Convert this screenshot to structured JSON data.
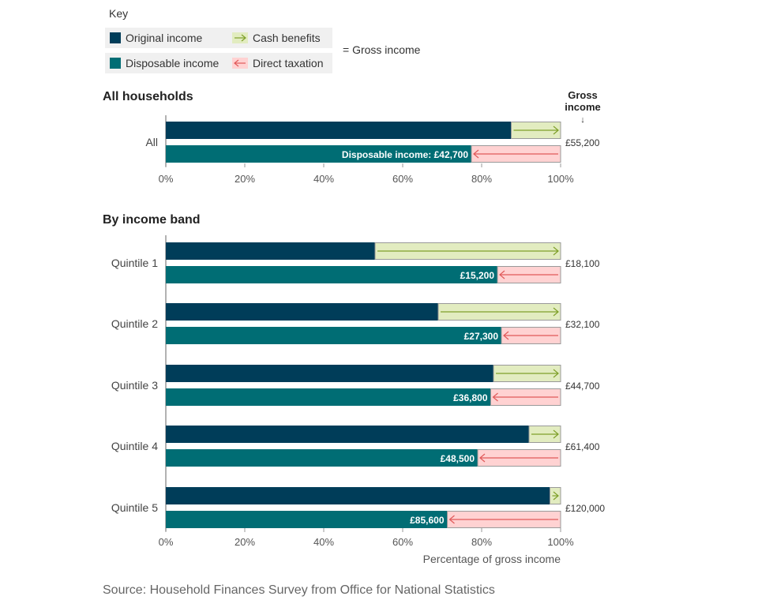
{
  "key": {
    "title": "Key",
    "items": [
      {
        "label": "Original income",
        "color": "#003d59",
        "kind": "swatch"
      },
      {
        "label": "Cash benefits",
        "color": "#e2ecc0",
        "arrow": "#7fa02a",
        "kind": "arrow-right"
      },
      {
        "label": "Disposable income",
        "color": "#006d74",
        "kind": "swatch"
      },
      {
        "label": "Direct taxation",
        "color": "#ffd2d2",
        "arrow": "#e05a5a",
        "kind": "arrow-left"
      }
    ],
    "gross_note": "= Gross income"
  },
  "sections": {
    "all_title": "All households",
    "band_title": "By income band"
  },
  "gross_header": {
    "line1": "Gross",
    "line2": "income",
    "arrow": "↓"
  },
  "axis": {
    "ticks": [
      "0%",
      "20%",
      "40%",
      "60%",
      "80%",
      "100%"
    ],
    "label": "Percentage of gross income"
  },
  "colors": {
    "original": "#003d59",
    "disposable": "#006d74",
    "benefits": "#e2ecc0",
    "benefits_arrow": "#7fa02a",
    "taxation": "#ffd2d2",
    "taxation_arrow": "#e05a5a"
  },
  "chart_data": {
    "type": "bar",
    "orientation": "horizontal",
    "xlabel": "Percentage of gross income",
    "xlim": [
      0,
      100
    ],
    "groups": [
      {
        "category": "All",
        "original_pct": 87.5,
        "disposable_pct": 77.4,
        "disposable_label": "Disposable income: £42,700",
        "gross_income": "£55,200"
      },
      {
        "category": "Quintile 1",
        "original_pct": 53,
        "disposable_pct": 84.0,
        "disposable_label": "£15,200",
        "gross_income": "£18,100"
      },
      {
        "category": "Quintile 2",
        "original_pct": 69,
        "disposable_pct": 85.0,
        "disposable_label": "£27,300",
        "gross_income": "£32,100"
      },
      {
        "category": "Quintile 3",
        "original_pct": 83,
        "disposable_pct": 82.3,
        "disposable_label": "£36,800",
        "gross_income": "£44,700"
      },
      {
        "category": "Quintile 4",
        "original_pct": 92,
        "disposable_pct": 79.0,
        "disposable_label": "£48,500",
        "gross_income": "£61,400"
      },
      {
        "category": "Quintile 5",
        "original_pct": 97.3,
        "disposable_pct": 71.3,
        "disposable_label": "£85,600",
        "gross_income": "£120,000"
      }
    ]
  },
  "source": "Source: Household Finances Survey from Office for National Statistics"
}
